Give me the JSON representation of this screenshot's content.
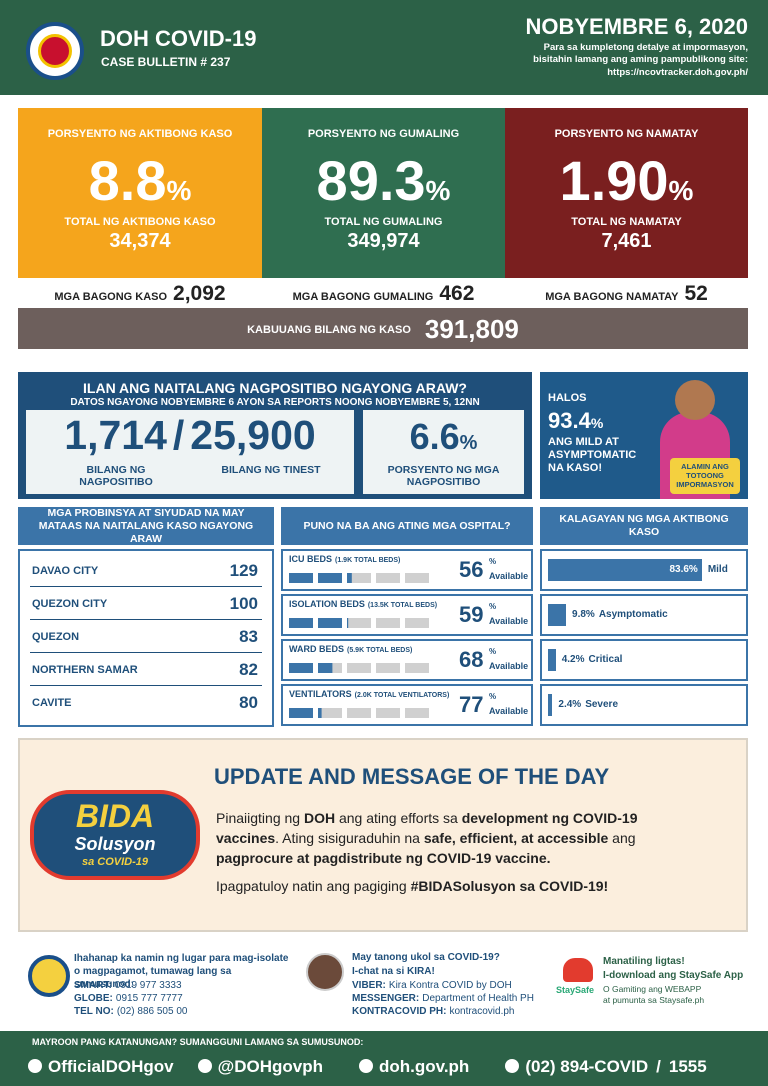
{
  "header": {
    "title": "DOH COVID-19",
    "bulletin": "CASE BULLETIN # 237",
    "date": "NOBYEMBRE 6, 2020",
    "note": "Para sa kumpletong detalye at impormasyon, bisitahin lamang ang aming pampublikong site:",
    "url": "https://ncovtracker.doh.gov.ph/"
  },
  "summary": {
    "cards": [
      {
        "label": "PORSYENTO NG AKTIBONG KASO",
        "percent": "8.8",
        "unit": "%",
        "total_label": "TOTAL NG AKTIBONG KASO",
        "total": "34,374",
        "new_label": "MGA BAGONG KASO",
        "new": "2,092"
      },
      {
        "label": "PORSYENTO NG GUMALING",
        "percent": "89.3",
        "unit": "%",
        "total_label": "TOTAL NG GUMALING",
        "total": "349,974",
        "new_label": "MGA BAGONG GUMALING",
        "new": "462"
      },
      {
        "label": "PORSYENTO NG NAMATAY",
        "percent": "1.90",
        "unit": "%",
        "total_label": "TOTAL NG NAMATAY",
        "total": "7,461",
        "new_label": "MGA BAGONG NAMATAY",
        "new": "52"
      }
    ],
    "overall_label": "KABUUANG BILANG NG KASO",
    "overall": "391,809"
  },
  "testing": {
    "title": "ILAN ANG NAITALANG NAGPOSITIBO NGAYONG ARAW?",
    "subtitle": "DATOS NGAYONG NOBYEMBRE 6 AYON SA REPORTS NOONG NOBYEMBRE 5, 12NN",
    "positive": "1,714",
    "separator": "/",
    "tested": "25,900",
    "positive_label": "BILANG NG NAGPOSITIBO",
    "tested_label": "BILANG NG TINEST",
    "rate": "6.6",
    "rate_unit": "%",
    "rate_label": "PORSYENTO NG MGA NAGPOSITIBO"
  },
  "mild": {
    "prefix": "HALOS",
    "value": "93.4",
    "unit": "%",
    "text": "ANG MILD AT ASYMPTOMATIC NA KASO!",
    "badge": "ALAMIN ANG TOTOONG IMPORMASYON"
  },
  "provinces": {
    "title": "MGA PROBINSYA AT SIYUDAD NA MAY MATAAS NA NAITALANG KASO NGAYONG ARAW",
    "rows": [
      [
        "DAVAO CITY",
        "129"
      ],
      [
        "QUEZON CITY",
        "100"
      ],
      [
        "QUEZON",
        "83"
      ],
      [
        "NORTHERN SAMAR",
        "82"
      ],
      [
        "CAVITE",
        "80"
      ]
    ]
  },
  "hospitals": {
    "title": "PUNO NA BA ANG ATING MGA OSPITAL?",
    "unit": "%",
    "status": "Available",
    "rows": [
      {
        "name": "ICU BEDS",
        "detail": "(1.9K TOTAL BEDS)",
        "value": 56
      },
      {
        "name": "ISOLATION BEDS",
        "detail": "(13.5K TOTAL BEDS)",
        "value": 59
      },
      {
        "name": "WARD BEDS",
        "detail": "(5.9K TOTAL BEDS)",
        "value": 68
      },
      {
        "name": "VENTILATORS",
        "detail": "(2.0K TOTAL VENTILATORS)",
        "value": 77
      }
    ]
  },
  "status": {
    "title": "KALAGAYAN NG MGA AKTIBONG KASO",
    "values": [
      83.6,
      9.8,
      4.2,
      2.4
    ],
    "value_labels": [
      "83.6%",
      "9.8%",
      "4.2%",
      "2.4%"
    ],
    "names": [
      "Mild",
      "Asymptomatic",
      "Critical",
      "Severe"
    ]
  },
  "update": {
    "title": "UPDATE AND MESSAGE OF THE DAY",
    "logo": [
      "BIDA",
      "Solusyon",
      "sa COVID-19"
    ],
    "paragraphs": [
      [
        {
          "text": "Pinaiigting ng ",
          "bold": false
        },
        {
          "text": "DOH",
          "bold": true
        },
        {
          "text": " ang ating efforts sa ",
          "bold": false
        },
        {
          "text": "development ng COVID-19 vaccines",
          "bold": true
        },
        {
          "text": ". Ating sisiguraduhin na ",
          "bold": false
        },
        {
          "text": "safe, efficient, at accessible",
          "bold": true
        },
        {
          "text": " ang ",
          "bold": false
        },
        {
          "text": "pagprocure at pagdistribute ng COVID-19 vaccine.",
          "bold": true
        }
      ],
      [
        {
          "text": "Ipagpatuloy natin ang pagiging ",
          "bold": false
        },
        {
          "text": "#BIDASolusyon sa COVID-19!",
          "bold": true
        }
      ]
    ]
  },
  "footer": {
    "isolate": {
      "text": "Ihahanap ka namin ng lugar para mag-isolate o magpagamot, tumawag lang sa sumusunod:",
      "lines": [
        [
          "SMART:",
          "0919 977 3333"
        ],
        [
          "GLOBE:",
          "0915 777 7777"
        ],
        [
          "TEL NO:",
          "(02) 886 505 00"
        ]
      ]
    },
    "kira": {
      "title": "May tanong ukol sa COVID-19?",
      "subtitle": "I-chat na si KIRA!",
      "lines": [
        [
          "VIBER:",
          "Kira Kontra COVID by DOH"
        ],
        [
          "MESSENGER:",
          "Department of Health PH"
        ],
        [
          "KONTRACOVID PH:",
          "kontracovid.ph"
        ]
      ]
    },
    "staysafe": {
      "logo": "StaySafe",
      "title": "Manatiling ligtas!",
      "subtitle": "I-download ang StaySafe App",
      "line1": "O Gamiting ang WEBAPP",
      "line2": "at pumunta sa Staysafe.ph"
    },
    "prompt": "MAYROON PANG KATANUNGAN? SUMANGGUNI LAMANG SA SUMUSUNOD:",
    "links": [
      "OfficialDOHgov",
      "@DOHgovph",
      "doh.gov.ph",
      "(02) 894-COVID",
      "/",
      "1555"
    ]
  }
}
